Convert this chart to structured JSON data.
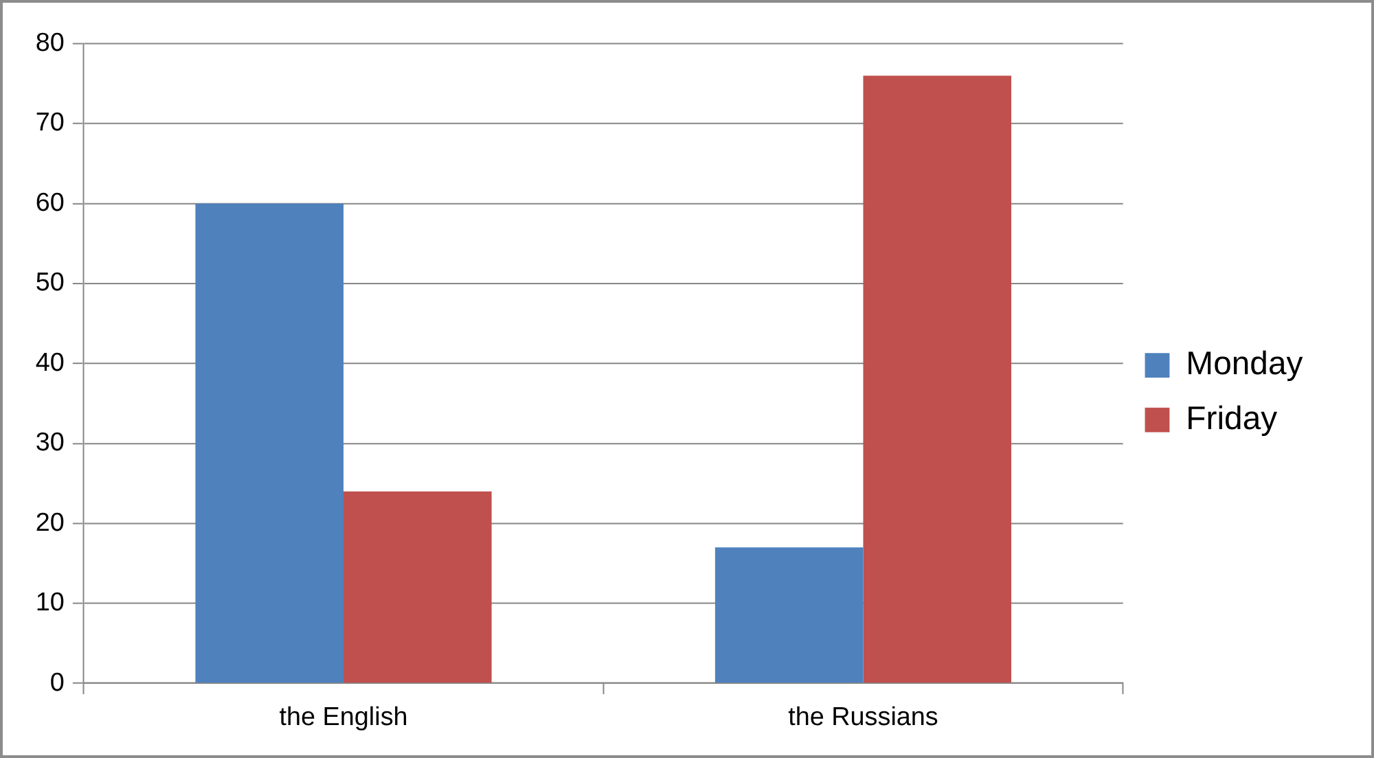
{
  "chart_data": {
    "type": "bar",
    "categories": [
      "the English",
      "the Russians"
    ],
    "series": [
      {
        "name": "Monday",
        "color": "#4f81bd",
        "values": [
          60,
          17
        ]
      },
      {
        "name": "Friday",
        "color": "#c0504d",
        "values": [
          24,
          76
        ]
      }
    ],
    "ylim": [
      0,
      80
    ],
    "yticks": [
      0,
      10,
      20,
      30,
      40,
      50,
      60,
      70,
      80
    ],
    "grid": "y",
    "legend": "right"
  }
}
